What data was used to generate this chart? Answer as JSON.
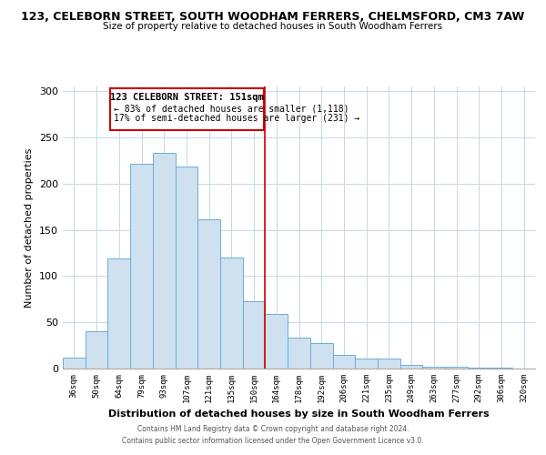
{
  "title": "123, CELEBORN STREET, SOUTH WOODHAM FERRERS, CHELMSFORD, CM3 7AW",
  "subtitle": "Size of property relative to detached houses in South Woodham Ferrers",
  "xlabel": "Distribution of detached houses by size in South Woodham Ferrers",
  "ylabel": "Number of detached properties",
  "bar_labels": [
    "36sqm",
    "50sqm",
    "64sqm",
    "79sqm",
    "93sqm",
    "107sqm",
    "121sqm",
    "135sqm",
    "150sqm",
    "164sqm",
    "178sqm",
    "192sqm",
    "206sqm",
    "221sqm",
    "235sqm",
    "249sqm",
    "263sqm",
    "277sqm",
    "292sqm",
    "306sqm",
    "320sqm"
  ],
  "bar_values": [
    12,
    40,
    119,
    221,
    233,
    218,
    161,
    120,
    73,
    59,
    33,
    28,
    15,
    11,
    11,
    4,
    2,
    2,
    1,
    1,
    0
  ],
  "bar_color": "#cfe0ef",
  "bar_edge_color": "#6aaed6",
  "vline_color": "#cc0000",
  "annotation_title": "123 CELEBORN STREET: 151sqm",
  "annotation_line1": "← 83% of detached houses are smaller (1,118)",
  "annotation_line2": "17% of semi-detached houses are larger (231) →",
  "ylim": [
    0,
    305
  ],
  "yticks": [
    0,
    50,
    100,
    150,
    200,
    250,
    300
  ],
  "footnote1": "Contains HM Land Registry data © Crown copyright and database right 2024.",
  "footnote2": "Contains public sector information licensed under the Open Government Licence v3.0."
}
